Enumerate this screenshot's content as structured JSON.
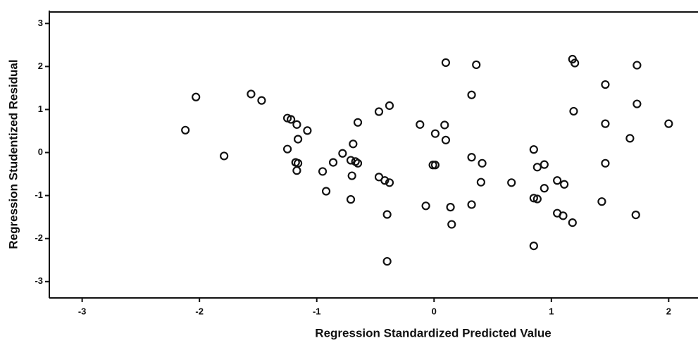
{
  "chart_data": {
    "type": "scatter",
    "x_label": "Regression Standardized Predicted Value",
    "y_label": "Regression Studentized Residual",
    "xlim": [
      -3.28,
      2.25
    ],
    "ylim": [
      -3.38,
      3.3
    ],
    "xticks": [
      -3,
      -2,
      -1,
      0,
      1,
      2
    ],
    "yticks": [
      -3,
      -2,
      -1,
      0,
      1,
      2,
      3
    ],
    "color": "#111111",
    "x": [
      -2.12,
      -2.03,
      -1.79,
      -1.56,
      -1.47,
      -1.25,
      -1.25,
      -1.22,
      -1.17,
      -1.16,
      -1.18,
      -1.16,
      -1.17,
      -1.08,
      -0.95,
      -0.92,
      -0.86,
      -0.78,
      -0.71,
      -0.69,
      -0.7,
      -0.71,
      -0.67,
      -0.65,
      -0.65,
      -0.47,
      -0.38,
      -0.47,
      -0.42,
      -0.38,
      -0.4,
      -0.4,
      -0.12,
      0.01,
      0.1,
      0.09,
      0.01,
      -0.01,
      -0.07,
      0.1,
      0.36,
      0.32,
      0.32,
      0.41,
      0.14,
      0.15,
      0.32,
      0.4,
      0.66,
      0.85,
      0.88,
      0.94,
      0.94,
      0.85,
      0.88,
      0.85,
      1.05,
      1.11,
      1.05,
      1.1,
      1.18,
      1.18,
      1.2,
      1.19,
      1.46,
      1.46,
      1.46,
      1.43,
      1.73,
      1.67,
      1.73,
      1.72,
      2.0
    ],
    "values": [
      0.52,
      1.29,
      -0.08,
      1.36,
      1.21,
      0.08,
      0.8,
      0.77,
      0.65,
      0.31,
      -0.23,
      -0.25,
      -0.42,
      0.51,
      -0.44,
      -0.9,
      -0.23,
      -0.02,
      -0.18,
      0.2,
      -0.54,
      -1.09,
      -0.21,
      -0.25,
      0.7,
      0.95,
      1.09,
      -0.57,
      -0.65,
      -0.7,
      -1.44,
      -2.53,
      0.65,
      0.44,
      0.29,
      0.64,
      -0.29,
      -0.29,
      -1.24,
      2.09,
      2.04,
      1.34,
      -0.11,
      -0.25,
      -1.27,
      -1.67,
      -1.21,
      -0.69,
      -0.7,
      0.07,
      -0.34,
      -0.28,
      -0.83,
      -1.06,
      -1.08,
      -2.17,
      -0.65,
      -0.74,
      -1.41,
      -1.47,
      -1.63,
      2.17,
      2.08,
      0.96,
      1.58,
      0.67,
      -0.25,
      -1.14,
      2.03,
      0.33,
      1.13,
      -1.45,
      0.67
    ]
  }
}
